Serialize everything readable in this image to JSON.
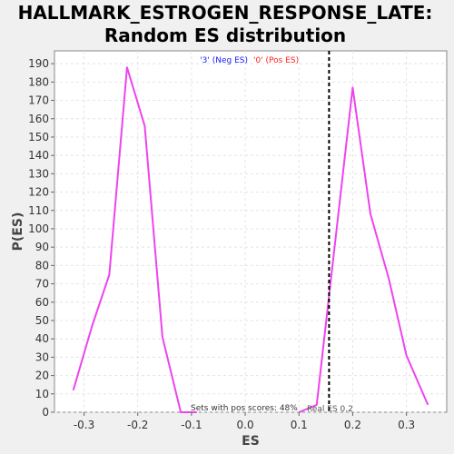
{
  "chart_data": {
    "type": "line",
    "title": [
      "HALLMARK_ESTROGEN_RESPONSE_LATE:",
      "Random ES distribution"
    ],
    "xlabel": "ES",
    "ylabel": "P(ES)",
    "xlim": [
      -0.355,
      0.375
    ],
    "ylim": [
      0,
      197
    ],
    "x_ticks": [
      -0.3,
      -0.2,
      -0.1,
      0.0,
      0.1,
      0.2,
      0.3
    ],
    "x_tick_labels": [
      "-0.3",
      "-0.2",
      "-0.1",
      "0.0",
      "0.1",
      "0.2",
      "0.3"
    ],
    "y_ticks": [
      0,
      10,
      20,
      30,
      40,
      50,
      60,
      70,
      80,
      90,
      100,
      110,
      120,
      130,
      140,
      150,
      160,
      170,
      180,
      190
    ],
    "y_tick_labels": [
      "0",
      "10",
      "20",
      "30",
      "40",
      "50",
      "60",
      "70",
      "80",
      "90",
      "100",
      "110",
      "120",
      "130",
      "140",
      "150",
      "160",
      "170",
      "180",
      "190"
    ],
    "grid": true,
    "series": [
      {
        "name": "'3' (Neg ES)",
        "color": "#ee44ee",
        "x": [
          -0.32,
          -0.285,
          -0.253,
          -0.22,
          -0.187,
          -0.154,
          -0.12,
          -0.09
        ],
        "y": [
          12,
          47,
          75,
          188,
          156,
          41,
          0,
          0
        ]
      },
      {
        "name": "'0' (Pos ES)",
        "color": "#ee44ee",
        "x": [
          0.1,
          0.133,
          0.2,
          0.233,
          0.267,
          0.3,
          0.34
        ],
        "y": [
          0,
          4,
          177,
          108,
          73,
          31,
          4
        ]
      }
    ],
    "legend": [
      {
        "label": "'3' (Neg ES)",
        "color": "#1a1aff"
      },
      {
        "label": "'0' (Pos ES)",
        "color": "#ff2020"
      }
    ],
    "legend_position": "top-center",
    "real_es": {
      "x": 0.156,
      "label": "Real ES 0.2"
    },
    "annotation": "Sets with pos scores: 48%"
  }
}
